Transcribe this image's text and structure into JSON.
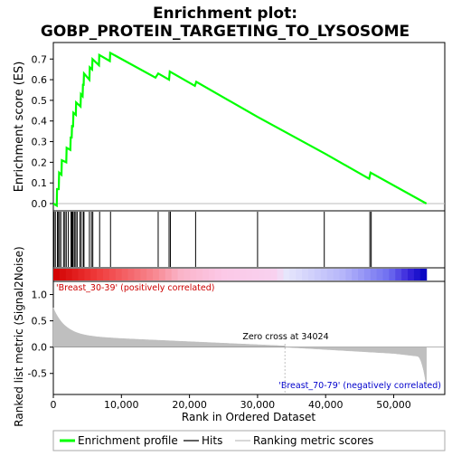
{
  "chart_data": {
    "type": "line",
    "title_line1": "Enrichment plot:",
    "title_line2": "GOBP_PROTEIN_TARGETING_TO_LYSOSOME",
    "es_panel": {
      "ylabel": "Enrichment score (ES)",
      "ylim": [
        -0.035,
        0.78
      ],
      "yticks": [
        "0.0",
        "0.1",
        "0.2",
        "0.3",
        "0.4",
        "0.5",
        "0.6",
        "0.7"
      ],
      "ytick_values": [
        0.0,
        0.1,
        0.2,
        0.3,
        0.4,
        0.5,
        0.6,
        0.7
      ],
      "line_color": "#00ff00",
      "points": [
        [
          0,
          0.0
        ],
        [
          500,
          -0.01
        ],
        [
          550,
          0.07
        ],
        [
          800,
          0.07
        ],
        [
          850,
          0.15
        ],
        [
          1200,
          0.14
        ],
        [
          1250,
          0.21
        ],
        [
          1900,
          0.2
        ],
        [
          1950,
          0.27
        ],
        [
          2500,
          0.26
        ],
        [
          2550,
          0.32
        ],
        [
          2700,
          0.32
        ],
        [
          2750,
          0.38
        ],
        [
          2900,
          0.37
        ],
        [
          2950,
          0.44
        ],
        [
          3300,
          0.43
        ],
        [
          3350,
          0.49
        ],
        [
          4000,
          0.47
        ],
        [
          4050,
          0.53
        ],
        [
          4300,
          0.52
        ],
        [
          4350,
          0.58
        ],
        [
          4450,
          0.57
        ],
        [
          4500,
          0.63
        ],
        [
          5300,
          0.6
        ],
        [
          5350,
          0.66
        ],
        [
          5700,
          0.65
        ],
        [
          5750,
          0.7
        ],
        [
          6700,
          0.67
        ],
        [
          6750,
          0.72
        ],
        [
          8300,
          0.69
        ],
        [
          8350,
          0.73
        ],
        [
          15000,
          0.61
        ],
        [
          15400,
          0.63
        ],
        [
          17000,
          0.6
        ],
        [
          17100,
          0.64
        ],
        [
          20800,
          0.57
        ],
        [
          21000,
          0.59
        ],
        [
          30000,
          0.42
        ],
        [
          40000,
          0.24
        ],
        [
          46400,
          0.12
        ],
        [
          46600,
          0.15
        ],
        [
          54800,
          0.0
        ]
      ]
    },
    "hits": [
      100,
      300,
      600,
      700,
      900,
      1100,
      1500,
      1700,
      1900,
      2200,
      2600,
      2700,
      2800,
      2900,
      3100,
      3300,
      3500,
      3900,
      4100,
      4400,
      4500,
      5300,
      5600,
      5800,
      6800,
      8400,
      15400,
      17000,
      17200,
      20900,
      30000,
      39800,
      46500,
      46700
    ],
    "rank_panel": {
      "ylabel": "Ranked list metric (Signal2Noise)",
      "ylim": [
        -0.9,
        1.25
      ],
      "yticks": [
        "-0.5",
        "0.0",
        "0.5",
        "1.0"
      ],
      "ytick_values": [
        -0.5,
        0.0,
        0.5,
        1.0
      ],
      "zero_cross_label": "Zero cross at 34024",
      "zero_cross_x": 34024,
      "pos_label": "'Breast_30-39' (positively correlated)",
      "neg_label": "'Breast_70-79' (negatively correlated)",
      "pos_color": "#cc0000",
      "neg_color": "#0000cc"
    },
    "xlabel": "Rank in Ordered Dataset",
    "xlim": [
      0,
      57500
    ],
    "xticks": [
      "0",
      "10,000",
      "20,000",
      "30,000",
      "40,000",
      "50,000"
    ],
    "xtick_values": [
      0,
      10000,
      20000,
      30000,
      40000,
      50000
    ],
    "dataset_size": 54800,
    "legend": {
      "placement": "bottom",
      "items": [
        {
          "label": "Enrichment profile",
          "color": "#00ff00",
          "kind": "thick-line"
        },
        {
          "label": "Hits",
          "color": "#000000",
          "kind": "thin-line"
        },
        {
          "label": "Ranking metric scores",
          "color": "#c0c0c0",
          "kind": "thin-line"
        }
      ]
    }
  }
}
